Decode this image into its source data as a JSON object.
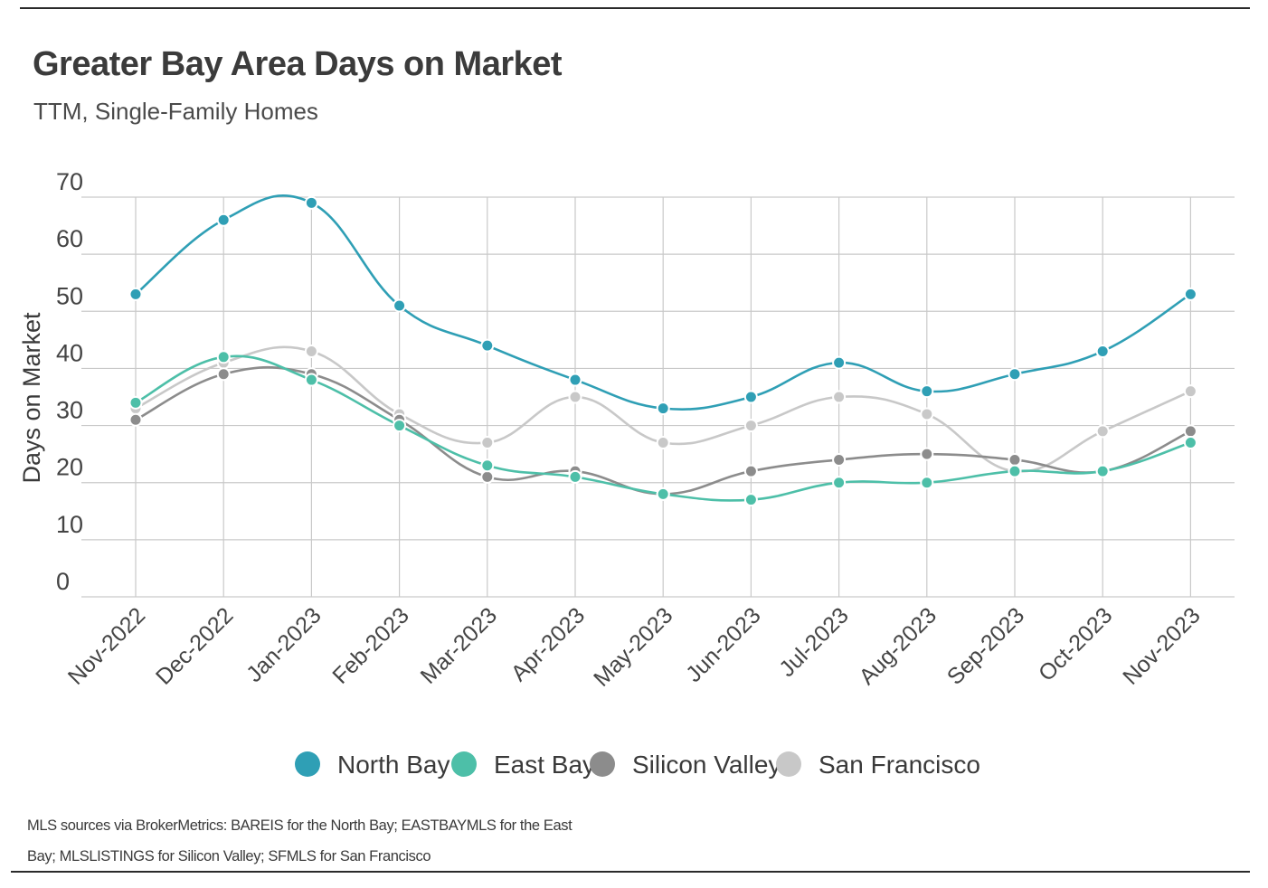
{
  "header": {
    "title": "Greater Bay Area Days on Market",
    "subtitle": "TTM, Single-Family Homes"
  },
  "source": {
    "line1": "MLS sources via BrokerMetrics: BAREIS for the North Bay; EASTBAYMLS for the East",
    "line2": "Bay; MLSLISTINGS for Silicon Valley; SFMLS for San Francisco"
  },
  "chart_data": {
    "type": "line",
    "title": "Greater Bay Area Days on Market",
    "subtitle": "TTM, Single-Family Homes",
    "xlabel": "",
    "ylabel": "Days on Market",
    "ylim": [
      0,
      70
    ],
    "yticks": [
      0,
      10,
      20,
      30,
      40,
      50,
      60,
      70
    ],
    "grid": true,
    "legend": "bottom-center",
    "categories": [
      "Nov-2022",
      "Dec-2022",
      "Jan-2023",
      "Feb-2023",
      "Mar-2023",
      "Apr-2023",
      "May-2023",
      "Jun-2023",
      "Jul-2023",
      "Aug-2023",
      "Sep-2023",
      "Oct-2023",
      "Nov-2023"
    ],
    "series": [
      {
        "name": "San Francisco",
        "color": "#c8c8c8",
        "values": [
          33,
          41,
          43,
          32,
          27,
          35,
          27,
          30,
          35,
          32,
          22,
          29,
          36
        ]
      },
      {
        "name": "Silicon Valley",
        "color": "#8c8c8c",
        "values": [
          31,
          39,
          39,
          31,
          21,
          22,
          18,
          22,
          24,
          25,
          24,
          22,
          29
        ]
      },
      {
        "name": "East Bay",
        "color": "#4dbfa8",
        "values": [
          34,
          42,
          38,
          30,
          23,
          21,
          18,
          17,
          20,
          20,
          22,
          22,
          27
        ]
      },
      {
        "name": "North Bay",
        "color": "#2f9fb5",
        "values": [
          53,
          66,
          69,
          51,
          44,
          38,
          33,
          35,
          41,
          36,
          39,
          43,
          53
        ]
      }
    ],
    "legend_order": [
      "North Bay",
      "East Bay",
      "Silicon Valley",
      "San Francisco"
    ]
  }
}
